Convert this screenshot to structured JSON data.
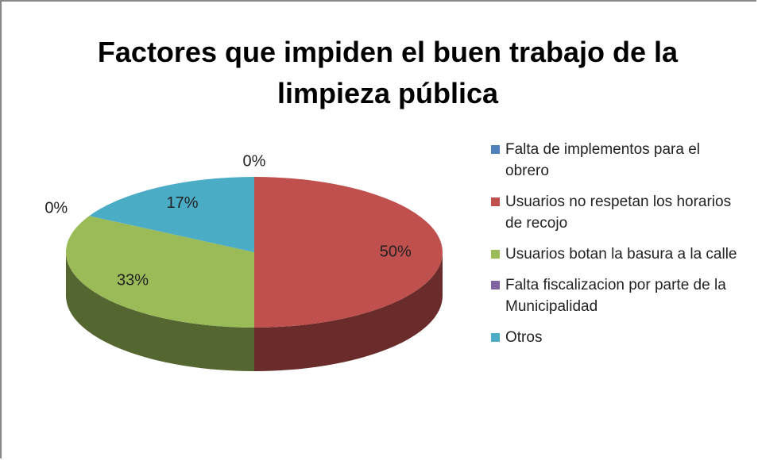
{
  "chart_data": {
    "type": "pie3d",
    "title": "Factores que impiden el buen trabajo de la limpieza pública",
    "categories": [
      "Falta de implementos para el obrero",
      "Usuarios no respetan los horarios de recojo",
      "Usuarios botan la basura a la calle",
      "Falta fiscalizacion por parte de la Municipalidad",
      "Otros"
    ],
    "values": [
      0,
      50,
      33,
      0,
      17
    ],
    "value_labels": [
      "0%",
      "50%",
      "33%",
      "0%",
      "17%"
    ],
    "colors": [
      "#4f81bd",
      "#c0504d",
      "#9bbb59",
      "#8064a2",
      "#4bacc6"
    ],
    "legend": "right"
  }
}
